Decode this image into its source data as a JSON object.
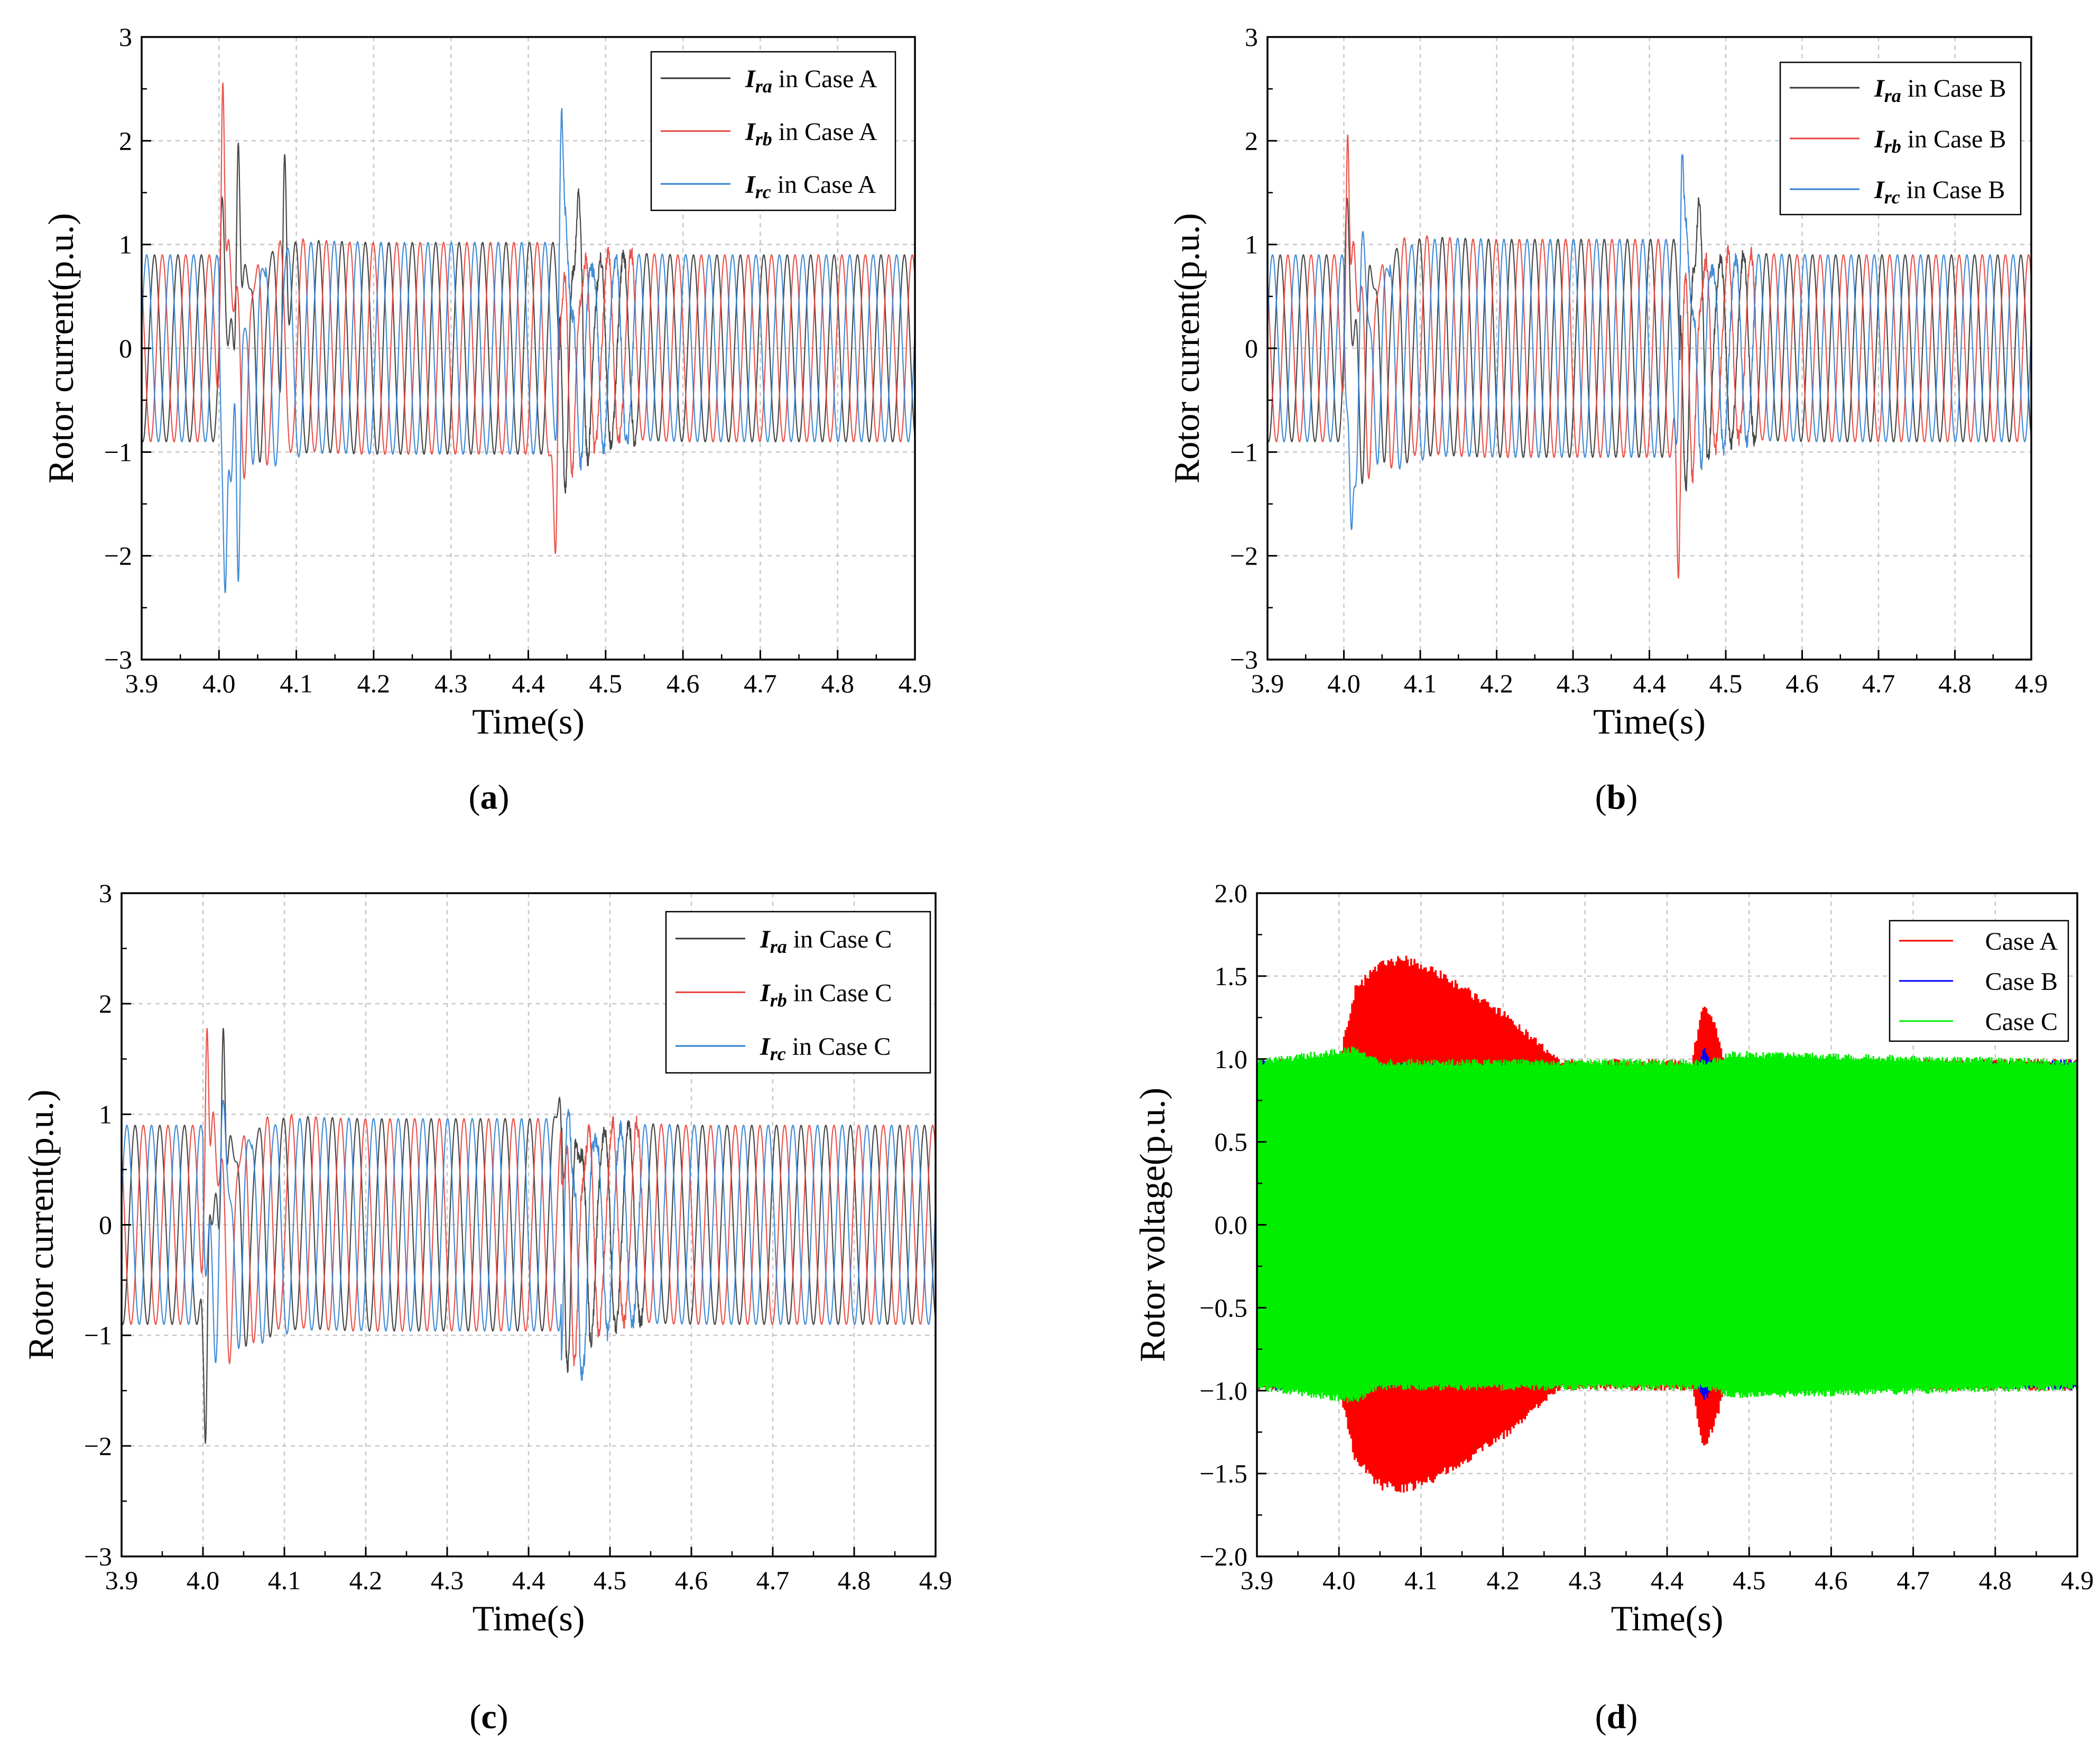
{
  "figure": {
    "panels": [
      "a",
      "b",
      "c",
      "d"
    ]
  },
  "chart_data": [
    {
      "id": "a",
      "type": "line",
      "caption": {
        "open": "(",
        "letter": "a",
        "close": ")"
      },
      "xlabel": "Time(s)",
      "ylabel": "Rotor current(p.u.)",
      "xlim": [
        3.9,
        4.9
      ],
      "ylim": [
        -3,
        3
      ],
      "xticks": [
        "3.9",
        "4.0",
        "4.1",
        "4.2",
        "4.3",
        "4.4",
        "4.5",
        "4.6",
        "4.7",
        "4.8",
        "4.9"
      ],
      "yticks": [
        "−3",
        "−2",
        "−1",
        "0",
        "1",
        "2",
        "3"
      ],
      "ytick_values": [
        -3,
        -2,
        -1,
        0,
        1,
        2,
        3
      ],
      "grid": true,
      "legend_position": "top-right",
      "fault_start": 4.0,
      "fault_end": 4.44,
      "series": [
        {
          "name": "Ira in Case A",
          "symbol": "I",
          "sub": "ra",
          "suffix": " in Case A",
          "color": "#333333",
          "phase": 0
        },
        {
          "name": "Irb in Case A",
          "symbol": "I",
          "sub": "rb",
          "suffix": " in Case A",
          "color": "#e8413a",
          "phase": -2.0944
        },
        {
          "name": "Irc in Case A",
          "symbol": "I",
          "sub": "rc",
          "suffix": " in Case A",
          "color": "#2f7fd1",
          "phase": 2.0944
        }
      ],
      "steady_amplitude": 0.9,
      "fault_amplitude": 1.02,
      "transient_peaks": [
        {
          "series": "Irb in Case A",
          "t": 4.005,
          "v": 2.56
        },
        {
          "series": "Irc in Case A",
          "t": 4.008,
          "v": -2.36
        },
        {
          "series": "Ira in Case A",
          "t": 4.025,
          "v": 1.98
        },
        {
          "series": "Irc in Case A",
          "t": 4.025,
          "v": -2.25
        },
        {
          "series": "Ira in Case A",
          "t": 4.085,
          "v": 1.87
        },
        {
          "series": "Irc in Case A",
          "t": 4.443,
          "v": 2.28
        },
        {
          "series": "Irb in Case A",
          "t": 4.435,
          "v": -1.98
        },
        {
          "series": "Ira in Case A",
          "t": 4.465,
          "v": 1.5
        }
      ]
    },
    {
      "id": "b",
      "type": "line",
      "caption": {
        "open": "(",
        "letter": "b",
        "close": ")"
      },
      "xlabel": "Time(s)",
      "ylabel": "Rotor current(p.u.)",
      "xlim": [
        3.9,
        4.9
      ],
      "ylim": [
        -3,
        3
      ],
      "xticks": [
        "3.9",
        "4.0",
        "4.1",
        "4.2",
        "4.3",
        "4.4",
        "4.5",
        "4.6",
        "4.7",
        "4.8",
        "4.9"
      ],
      "yticks": [
        "−3",
        "−2",
        "−1",
        "0",
        "1",
        "2",
        "3"
      ],
      "ytick_values": [
        -3,
        -2,
        -1,
        0,
        1,
        2,
        3
      ],
      "grid": true,
      "legend_position": "top-right",
      "fault_start": 4.0,
      "fault_end": 4.44,
      "series": [
        {
          "name": "Ira in Case B",
          "symbol": "I",
          "sub": "ra",
          "suffix": " in Case B",
          "color": "#333333",
          "phase": 0
        },
        {
          "name": "Irb in Case B",
          "symbol": "I",
          "sub": "rb",
          "suffix": " in Case B",
          "color": "#e8413a",
          "phase": -2.0944
        },
        {
          "name": "Irc in Case B",
          "symbol": "I",
          "sub": "rc",
          "suffix": " in Case B",
          "color": "#2f7fd1",
          "phase": 2.0944
        }
      ],
      "steady_amplitude": 0.9,
      "fault_amplitude": 1.05,
      "transient_peaks": [
        {
          "series": "Irb in Case B",
          "t": 4.005,
          "v": 2.06
        },
        {
          "series": "Irc in Case B",
          "t": 4.01,
          "v": -1.75
        },
        {
          "series": "Irc in Case B",
          "t": 4.443,
          "v": 1.9
        },
        {
          "series": "Irb in Case B",
          "t": 4.438,
          "v": -2.22
        },
        {
          "series": "Ira in Case B",
          "t": 4.465,
          "v": 1.42
        }
      ]
    },
    {
      "id": "c",
      "type": "line",
      "caption": {
        "open": "(",
        "letter": "c",
        "close": ")"
      },
      "xlabel": "Time(s)",
      "ylabel": "Rotor current(p.u.)",
      "xlim": [
        3.9,
        4.9
      ],
      "ylim": [
        -3,
        3
      ],
      "xticks": [
        "3.9",
        "4.0",
        "4.1",
        "4.2",
        "4.3",
        "4.4",
        "4.5",
        "4.6",
        "4.7",
        "4.8",
        "4.9"
      ],
      "yticks": [
        "−3",
        "−2",
        "−1",
        "0",
        "1",
        "2",
        "3"
      ],
      "ytick_values": [
        -3,
        -2,
        -1,
        0,
        1,
        2,
        3
      ],
      "grid": true,
      "legend_position": "top-right",
      "fault_start": 4.0,
      "fault_end": 4.44,
      "series": [
        {
          "name": "Ira in Case C",
          "symbol": "I",
          "sub": "ra",
          "suffix": " in Case C",
          "color": "#333333",
          "phase": 0
        },
        {
          "name": "Irb in Case C",
          "symbol": "I",
          "sub": "rb",
          "suffix": " in Case C",
          "color": "#e8413a",
          "phase": -2.0944
        },
        {
          "name": "Irc in Case C",
          "symbol": "I",
          "sub": "rc",
          "suffix": " in Case C",
          "color": "#2f7fd1",
          "phase": 2.0944
        }
      ],
      "steady_amplitude": 0.9,
      "fault_amplitude": 0.96,
      "transient_peaks": [
        {
          "series": "Irb in Case C",
          "t": 4.005,
          "v": 1.78
        },
        {
          "series": "Ira in Case C",
          "t": 4.025,
          "v": 1.78
        },
        {
          "series": "Ira in Case C",
          "t": 4.003,
          "v": -1.98
        },
        {
          "series": "Irc in Case C",
          "t": 4.465,
          "v": -1.35
        },
        {
          "series": "Ira in Case C",
          "t": 4.438,
          "v": 1.15
        }
      ]
    },
    {
      "id": "d",
      "type": "line",
      "caption": {
        "open": "(",
        "letter": "d",
        "close": ")"
      },
      "xlabel": "Time(s)",
      "ylabel": "Rotor voltage(p.u.)",
      "xlim": [
        3.9,
        4.9
      ],
      "ylim": [
        -2.0,
        2.0
      ],
      "xticks": [
        "3.9",
        "4.0",
        "4.1",
        "4.2",
        "4.3",
        "4.4",
        "4.5",
        "4.6",
        "4.7",
        "4.8",
        "4.9"
      ],
      "yticks": [
        "−2.0",
        "−1.5",
        "−1.0",
        "−0.5",
        "0.0",
        "0.5",
        "1.0",
        "1.5",
        "2.0"
      ],
      "ytick_values": [
        -2.0,
        -1.5,
        -1.0,
        -0.5,
        0.0,
        0.5,
        1.0,
        1.5,
        2.0
      ],
      "grid": true,
      "legend_position": "top-right",
      "series": [
        {
          "name": "Case A",
          "label": "Case A",
          "color": "#ff0000",
          "envelope": [
            [
              3.9,
              1.0
            ],
            [
              4.0,
              1.0
            ],
            [
              4.02,
              1.45
            ],
            [
              4.05,
              1.6
            ],
            [
              4.08,
              1.63
            ],
            [
              4.12,
              1.55
            ],
            [
              4.2,
              1.3
            ],
            [
              4.27,
              1.0
            ],
            [
              4.43,
              1.0
            ],
            [
              4.445,
              1.38
            ],
            [
              4.46,
              1.2
            ],
            [
              4.47,
              1.0
            ],
            [
              4.9,
              1.0
            ]
          ]
        },
        {
          "name": "Case B",
          "label": "Case B",
          "color": "#0000ff",
          "envelope": [
            [
              3.9,
              1.0
            ],
            [
              4.0,
              1.0
            ],
            [
              4.03,
              0.98
            ],
            [
              4.2,
              0.97
            ],
            [
              4.43,
              0.92
            ],
            [
              4.445,
              1.08
            ],
            [
              4.46,
              0.95
            ],
            [
              4.9,
              1.0
            ]
          ]
        },
        {
          "name": "Case C",
          "label": "Case C",
          "color": "#00ee00",
          "envelope": [
            [
              3.9,
              1.0
            ],
            [
              4.02,
              1.08
            ],
            [
              4.05,
              1.0
            ],
            [
              4.45,
              1.0
            ],
            [
              4.48,
              1.05
            ],
            [
              4.9,
              1.0
            ]
          ]
        }
      ]
    }
  ]
}
